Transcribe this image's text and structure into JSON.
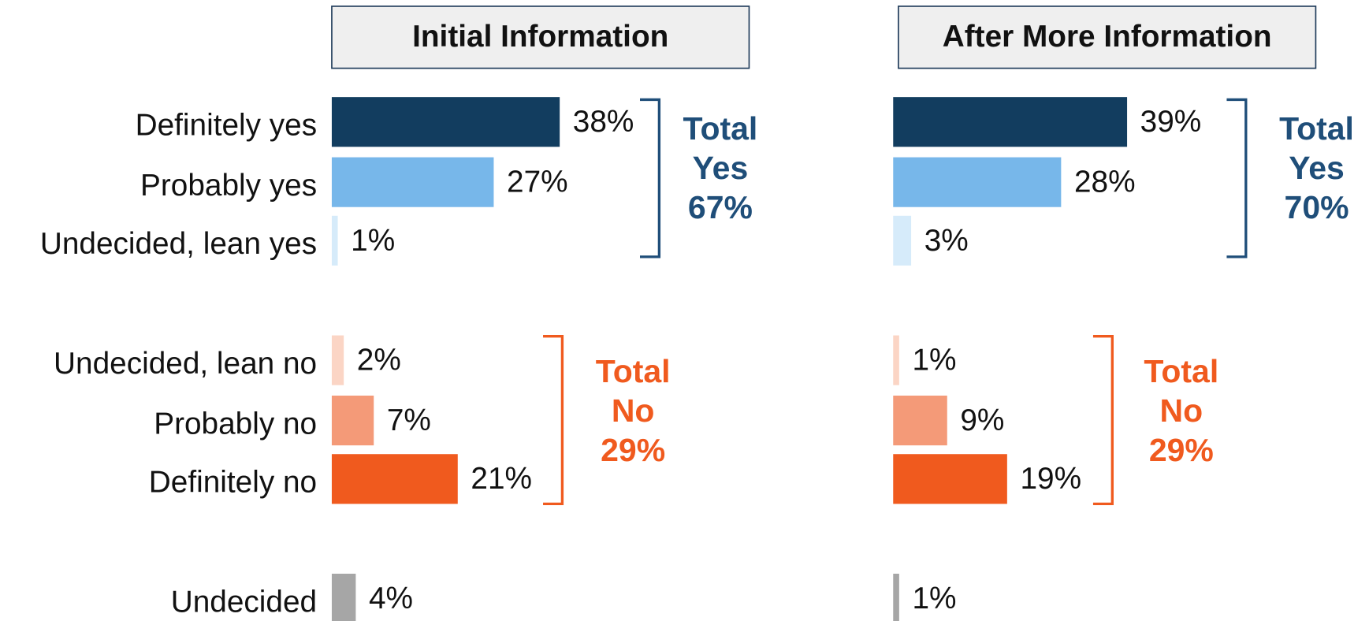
{
  "chart_data": {
    "type": "bar",
    "categories": [
      "Definitely yes",
      "Probably yes",
      "Undecided, lean yes",
      "Undecided, lean no",
      "Probably no",
      "Definitely no",
      "Undecided"
    ],
    "colors": [
      "#123d5f",
      "#77b7ea",
      "#d6ebfa",
      "#fbd5c5",
      "#f49a78",
      "#f05a1e",
      "#a6a6a6"
    ],
    "series": [
      {
        "name": "Initial Information",
        "values": [
          38,
          27,
          1,
          2,
          7,
          21,
          4
        ],
        "value_labels": [
          "38%",
          "27%",
          "1%",
          "2%",
          "7%",
          "21%",
          "4%"
        ],
        "totals": [
          {
            "color": "#1f4e79",
            "lines": [
              "Total",
              "Yes",
              "67%"
            ]
          },
          {
            "color": "#f05a1e",
            "lines": [
              "Total",
              "No",
              "29%"
            ]
          }
        ]
      },
      {
        "name": "After More Information",
        "values": [
          39,
          28,
          3,
          1,
          9,
          19,
          1
        ],
        "value_labels": [
          "39%",
          "28%",
          "3%",
          "1%",
          "9%",
          "19%",
          "1%"
        ],
        "totals": [
          {
            "color": "#1f4e79",
            "lines": [
              "Total",
              "Yes",
              "70%"
            ]
          },
          {
            "color": "#f05a1e",
            "lines": [
              "Total",
              "No",
              "29%"
            ]
          }
        ]
      }
    ]
  }
}
